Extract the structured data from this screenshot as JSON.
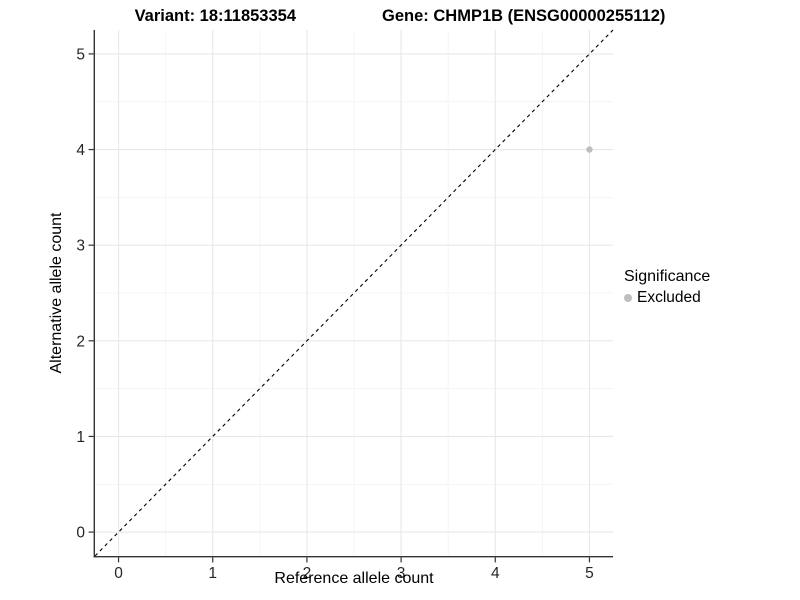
{
  "header": {
    "variant_title": "Variant: 18:11853354",
    "gene_title": "Gene: CHMP1B (ENSG00000255112)"
  },
  "chart_data": {
    "type": "scatter",
    "title_left": "Variant: 18:11853354",
    "title_right": "Gene: CHMP1B (ENSG00000255112)",
    "xlabel": "Reference allele count",
    "ylabel": "Alternative allele count",
    "xlim": [
      -0.25,
      5.25
    ],
    "ylim": [
      -0.25,
      5.25
    ],
    "x_ticks": [
      0,
      1,
      2,
      3,
      4,
      5
    ],
    "y_ticks": [
      0,
      1,
      2,
      3,
      4,
      5
    ],
    "minor_grid_step": 0.5,
    "grid_on": true,
    "series": [
      {
        "name": "Excluded",
        "points": [
          {
            "x": 5,
            "y": 4
          }
        ],
        "color": "#bebebe"
      }
    ],
    "reference_line": {
      "type": "identity y=x",
      "from": [
        -0.25,
        -0.25
      ],
      "to": [
        5.25,
        5.25
      ],
      "style": "dashed",
      "color": "#000000"
    },
    "legend_position": "right",
    "colors": {
      "major_grid": "#e8e8e8",
      "minor_grid": "#f4f4f4",
      "axis_line": "#333333",
      "tick_mark": "#333333",
      "tick_label": "#262626",
      "point": "#bebebe"
    }
  },
  "legend": {
    "title": "Significance",
    "items": [
      {
        "label": "Excluded",
        "color": "#bebebe"
      }
    ]
  }
}
